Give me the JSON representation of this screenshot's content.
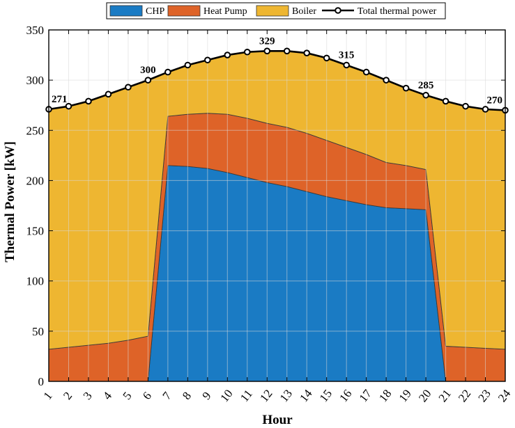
{
  "chart_data": {
    "type": "area",
    "title": "",
    "xlabel": "Hour",
    "ylabel": "Thermal Power [kW]",
    "x": [
      1,
      2,
      3,
      4,
      5,
      6,
      7,
      8,
      9,
      10,
      11,
      12,
      13,
      14,
      15,
      16,
      17,
      18,
      19,
      20,
      21,
      22,
      23,
      24
    ],
    "xlim": [
      1,
      24
    ],
    "ylim": [
      0,
      350
    ],
    "yticks": [
      0,
      50,
      100,
      150,
      200,
      250,
      300,
      350
    ],
    "grid": true,
    "stacked": true,
    "legend_position": "top",
    "series": [
      {
        "name": "CHP",
        "color": "#1a7bc4",
        "values": [
          0,
          0,
          0,
          0,
          0,
          0,
          215,
          214,
          212,
          208,
          203,
          198,
          194,
          189,
          184,
          180,
          176,
          173,
          172,
          171,
          0,
          0,
          0,
          0
        ]
      },
      {
        "name": "Heat Pump",
        "color": "#de6328",
        "values": [
          32,
          34,
          36,
          38,
          41,
          45,
          49,
          52,
          55,
          58,
          59,
          59,
          59,
          58,
          56,
          53,
          50,
          45,
          43,
          40,
          35,
          34,
          33,
          32
        ]
      },
      {
        "name": "Boiler",
        "color": "#eeb631",
        "values": [
          239,
          240,
          243,
          248,
          252,
          255,
          44,
          49,
          53,
          59,
          66,
          72,
          76,
          80,
          82,
          82,
          82,
          82,
          77,
          74,
          244,
          240,
          238,
          238
        ]
      },
      {
        "name": "Total thermal power",
        "type": "line",
        "color": "#000000",
        "values": [
          271,
          274,
          279,
          286,
          293,
          300,
          308,
          315,
          320,
          325,
          328,
          329,
          329,
          327,
          322,
          315,
          308,
          300,
          292,
          285,
          279,
          274,
          271,
          270
        ]
      }
    ],
    "annotations": [
      {
        "x": 1,
        "text": "271"
      },
      {
        "x": 6,
        "text": "300"
      },
      {
        "x": 12,
        "text": "329"
      },
      {
        "x": 16,
        "text": "315"
      },
      {
        "x": 20,
        "text": "285"
      },
      {
        "x": 24,
        "text": "270"
      }
    ]
  }
}
